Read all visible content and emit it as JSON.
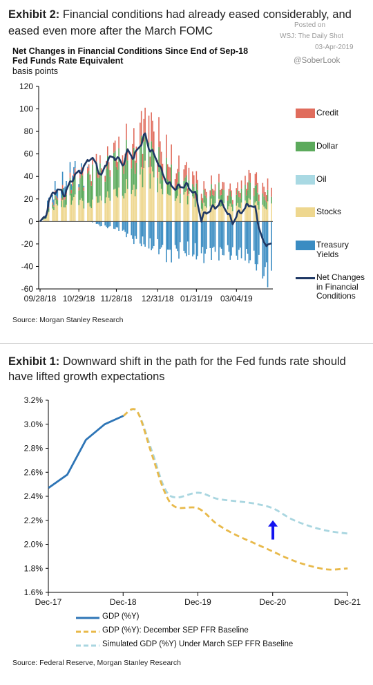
{
  "exhibit2": {
    "label": "Exhibit 2:",
    "title_line1": "Financial conditions had already eased considerably, and",
    "title_line2": "eased even more after the March FOMC",
    "chart_title_line1": "Net Changes in Financial Conditions Since End of Sep-18",
    "chart_title_line2": "Fed Funds Rate Equivalent",
    "chart_subtitle": "basis points",
    "source": "Source: Morgan Stanley Research"
  },
  "watermark": {
    "posted_on": "Posted on",
    "outlet": "WSJ: The Daily Shot",
    "date": "03-Apr-2019",
    "handle": "@SoberLook"
  },
  "exhibit1": {
    "label": "Exhibit 1:",
    "title_line1": "Downward shift in the path for the Fed funds rate should",
    "title_line2": "have lifted growth expectations",
    "source": "Source: Federal Reserve, Morgan Stanley Research"
  },
  "colors": {
    "credit": "#e06c5c",
    "dollar": "#5caa5c",
    "oil": "#a9d9e3",
    "stocks": "#eed78f",
    "treasury": "#3a8cc2",
    "net": "#1f3864",
    "gdp": "#2e75b6",
    "dec_sep": "#e8b94a",
    "march_sep": "#a9d6e0",
    "arrow": "#1414f0"
  },
  "chart_data": [
    {
      "type": "bar",
      "stacked": true,
      "title": "Net Changes in Financial Conditions Since End of Sep-18",
      "subtitle": "Fed Funds Rate Equivalent",
      "ylabel": "basis points",
      "ylim": [
        -60,
        120
      ],
      "yticks": [
        "120",
        "100",
        "80",
        "60",
        "40",
        "20",
        "0",
        "-20",
        "-40",
        "-60"
      ],
      "xtick_labels": [
        "09/28/18",
        "10/29/18",
        "11/28/18",
        "12/31/18",
        "01/31/19",
        "03/04/19"
      ],
      "x_key_dates": [
        "2018-09-28",
        "2018-10-29",
        "2018-11-28",
        "2018-12-31",
        "2019-01-31",
        "2019-03-04",
        "2019-04-01"
      ],
      "legend_position": "right",
      "legend": [
        {
          "key": "credit",
          "label": "Credit",
          "kind": "box"
        },
        {
          "key": "dollar",
          "label": "Dollar",
          "kind": "box"
        },
        {
          "key": "oil",
          "label": "Oil",
          "kind": "box"
        },
        {
          "key": "stocks",
          "label": "Stocks",
          "kind": "box"
        },
        {
          "key": "treasury",
          "label": "Treasury Yields",
          "kind": "box"
        },
        {
          "key": "net",
          "label": "Net Changes in Financial Conditions",
          "kind": "line"
        }
      ],
      "series_points": [
        {
          "date": "2018-09-28",
          "stocks": 0,
          "credit": 0,
          "dollar": 0,
          "oil": 0,
          "treasury": 0,
          "net": 0
        },
        {
          "date": "2018-10-02",
          "stocks": 2,
          "credit": 0,
          "dollar": 1,
          "oil": 0,
          "treasury": 2,
          "net": 2
        },
        {
          "date": "2018-10-05",
          "stocks": 8,
          "credit": 1,
          "dollar": 3,
          "oil": 0,
          "treasury": 8,
          "net": 18
        },
        {
          "date": "2018-10-11",
          "stocks": 16,
          "credit": 2,
          "dollar": 5,
          "oil": 0,
          "treasury": 6,
          "net": 28
        },
        {
          "date": "2018-10-18",
          "stocks": 14,
          "credit": 3,
          "dollar": 8,
          "oil": 0,
          "treasury": 10,
          "net": 24
        },
        {
          "date": "2018-10-24",
          "stocks": 20,
          "credit": 4,
          "dollar": 14,
          "oil": 0,
          "treasury": 6,
          "net": 38
        },
        {
          "date": "2018-10-29",
          "stocks": 20,
          "credit": 4,
          "dollar": 18,
          "oil": 0,
          "treasury": 4,
          "net": 43
        },
        {
          "date": "2018-11-02",
          "stocks": 16,
          "credit": 4,
          "dollar": 22,
          "oil": 0,
          "treasury": 2,
          "net": 47
        },
        {
          "date": "2018-11-07",
          "stocks": 14,
          "credit": 5,
          "dollar": 25,
          "oil": 0,
          "treasury": 0,
          "net": 57
        },
        {
          "date": "2018-11-12",
          "stocks": 20,
          "credit": 6,
          "dollar": 28,
          "oil": 0,
          "treasury": -2,
          "net": 50
        },
        {
          "date": "2018-11-16",
          "stocks": 18,
          "credit": 6,
          "dollar": 22,
          "oil": 0,
          "treasury": -4,
          "net": 39
        },
        {
          "date": "2018-11-21",
          "stocks": 22,
          "credit": 7,
          "dollar": 26,
          "oil": 0,
          "treasury": -5,
          "net": 55
        },
        {
          "date": "2018-11-28",
          "stocks": 26,
          "credit": 8,
          "dollar": 30,
          "oil": 0,
          "treasury": -6,
          "net": 57
        },
        {
          "date": "2018-12-03",
          "stocks": 22,
          "credit": 9,
          "dollar": 26,
          "oil": 0,
          "treasury": -8,
          "net": 50
        },
        {
          "date": "2018-12-07",
          "stocks": 32,
          "credit": 12,
          "dollar": 28,
          "oil": 0,
          "treasury": -12,
          "net": 62
        },
        {
          "date": "2018-12-12",
          "stocks": 26,
          "credit": 14,
          "dollar": 26,
          "oil": 0,
          "treasury": -16,
          "net": 57
        },
        {
          "date": "2018-12-17",
          "stocks": 38,
          "credit": 18,
          "dollar": 24,
          "oil": 0,
          "treasury": -18,
          "net": 68
        },
        {
          "date": "2018-12-21",
          "stocks": 48,
          "credit": 20,
          "dollar": 22,
          "oil": 0,
          "treasury": -20,
          "net": 77
        },
        {
          "date": "2018-12-24",
          "stocks": 44,
          "credit": 22,
          "dollar": 20,
          "oil": 0,
          "treasury": -22,
          "net": 66
        },
        {
          "date": "2018-12-31",
          "stocks": 36,
          "credit": 22,
          "dollar": 18,
          "oil": 0,
          "treasury": -22,
          "net": 54
        },
        {
          "date": "2019-01-04",
          "stocks": 30,
          "credit": 18,
          "dollar": 16,
          "oil": 0,
          "treasury": -26,
          "net": 42
        },
        {
          "date": "2019-01-09",
          "stocks": 26,
          "credit": 14,
          "dollar": 14,
          "oil": 0,
          "treasury": -28,
          "net": 33
        },
        {
          "date": "2019-01-15",
          "stocks": 22,
          "credit": 12,
          "dollar": 12,
          "oil": 0,
          "treasury": -26,
          "net": 30
        },
        {
          "date": "2019-01-22",
          "stocks": 24,
          "credit": 10,
          "dollar": 12,
          "oil": 0,
          "treasury": -26,
          "net": 33
        },
        {
          "date": "2019-01-28",
          "stocks": 20,
          "credit": 10,
          "dollar": 10,
          "oil": 0,
          "treasury": -28,
          "net": 28
        },
        {
          "date": "2019-01-31",
          "stocks": 18,
          "credit": 9,
          "dollar": 10,
          "oil": 0,
          "treasury": -28,
          "net": 22
        },
        {
          "date": "2019-02-04",
          "stocks": 12,
          "credit": 6,
          "dollar": 8,
          "oil": 0,
          "treasury": -30,
          "net": 2
        },
        {
          "date": "2019-02-08",
          "stocks": 14,
          "credit": 6,
          "dollar": 10,
          "oil": 0,
          "treasury": -28,
          "net": 9
        },
        {
          "date": "2019-02-13",
          "stocks": 16,
          "credit": 6,
          "dollar": 10,
          "oil": 0,
          "treasury": -26,
          "net": 12
        },
        {
          "date": "2019-02-19",
          "stocks": 16,
          "credit": 6,
          "dollar": 12,
          "oil": 0,
          "treasury": -28,
          "net": 17
        },
        {
          "date": "2019-02-22",
          "stocks": 14,
          "credit": 6,
          "dollar": 10,
          "oil": 0,
          "treasury": -26,
          "net": 15
        },
        {
          "date": "2019-02-26",
          "stocks": 14,
          "credit": 6,
          "dollar": 10,
          "oil": 0,
          "treasury": -28,
          "net": 5
        },
        {
          "date": "2019-03-01",
          "stocks": 12,
          "credit": 5,
          "dollar": 8,
          "oil": 0,
          "treasury": -30,
          "net": 0
        },
        {
          "date": "2019-03-06",
          "stocks": 14,
          "credit": 6,
          "dollar": 10,
          "oil": 0,
          "treasury": -28,
          "net": 8
        },
        {
          "date": "2019-03-11",
          "stocks": 16,
          "credit": 7,
          "dollar": 12,
          "oil": 0,
          "treasury": -30,
          "net": 12
        },
        {
          "date": "2019-03-15",
          "stocks": 18,
          "credit": 8,
          "dollar": 14,
          "oil": 0,
          "treasury": -32,
          "net": 16
        },
        {
          "date": "2019-03-19",
          "stocks": 16,
          "credit": 10,
          "dollar": 14,
          "oil": 0,
          "treasury": -36,
          "net": 11
        },
        {
          "date": "2019-03-22",
          "stocks": 14,
          "credit": 8,
          "dollar": 10,
          "oil": 0,
          "treasury": -40,
          "net": -4
        },
        {
          "date": "2019-03-26",
          "stocks": 12,
          "credit": 8,
          "dollar": 8,
          "oil": 0,
          "treasury": -44,
          "net": -21
        },
        {
          "date": "2019-03-29",
          "stocks": 14,
          "credit": 8,
          "dollar": 8,
          "oil": 0,
          "treasury": -46,
          "net": -19
        },
        {
          "date": "2019-04-01",
          "stocks": 16,
          "credit": 8,
          "dollar": 6,
          "oil": 0,
          "treasury": -44,
          "net": -21
        }
      ]
    },
    {
      "type": "line",
      "ylim": [
        1.6,
        3.2
      ],
      "yticks": [
        "3.2%",
        "3.0%",
        "2.8%",
        "2.6%",
        "2.4%",
        "2.2%",
        "2.0%",
        "1.8%",
        "1.6%"
      ],
      "xtick_labels": [
        "Dec-17",
        "Dec-18",
        "Dec-19",
        "Dec-20",
        "Dec-21"
      ],
      "x_range_years": [
        2017.917,
        2021.917
      ],
      "legend_position": "bottom",
      "series": [
        {
          "key": "gdp",
          "name": "GDP (%Y)",
          "style": "solid",
          "points": [
            [
              2017.92,
              2.47
            ],
            [
              2018.17,
              2.58
            ],
            [
              2018.42,
              2.87
            ],
            [
              2018.67,
              3.0
            ],
            [
              2018.92,
              3.07
            ]
          ]
        },
        {
          "key": "dec_sep",
          "name": "GDP (%Y): December SEP FFR Baseline",
          "style": "dashed",
          "points": [
            [
              2018.92,
              3.07
            ],
            [
              2019.1,
              3.11
            ],
            [
              2019.3,
              2.75
            ],
            [
              2019.47,
              2.44
            ],
            [
              2019.62,
              2.31
            ],
            [
              2019.92,
              2.3
            ],
            [
              2020.17,
              2.17
            ],
            [
              2020.42,
              2.08
            ],
            [
              2020.67,
              2.01
            ],
            [
              2020.92,
              1.94
            ],
            [
              2021.17,
              1.87
            ],
            [
              2021.42,
              1.82
            ],
            [
              2021.67,
              1.79
            ],
            [
              2021.92,
              1.8
            ]
          ]
        },
        {
          "key": "march_sep",
          "name": "Simulated GDP (%Y) Under March SEP FFR Baseline",
          "style": "dashed",
          "points": [
            [
              2018.92,
              3.07
            ],
            [
              2019.1,
              3.11
            ],
            [
              2019.3,
              2.78
            ],
            [
              2019.47,
              2.47
            ],
            [
              2019.62,
              2.39
            ],
            [
              2019.92,
              2.43
            ],
            [
              2020.17,
              2.38
            ],
            [
              2020.42,
              2.36
            ],
            [
              2020.67,
              2.34
            ],
            [
              2020.92,
              2.3
            ],
            [
              2021.17,
              2.21
            ],
            [
              2021.42,
              2.15
            ],
            [
              2021.67,
              2.11
            ],
            [
              2021.92,
              2.09
            ]
          ]
        }
      ],
      "annotation": {
        "type": "arrow-up",
        "x": 2020.92,
        "y_from": 2.04,
        "y_to": 2.2
      }
    }
  ]
}
